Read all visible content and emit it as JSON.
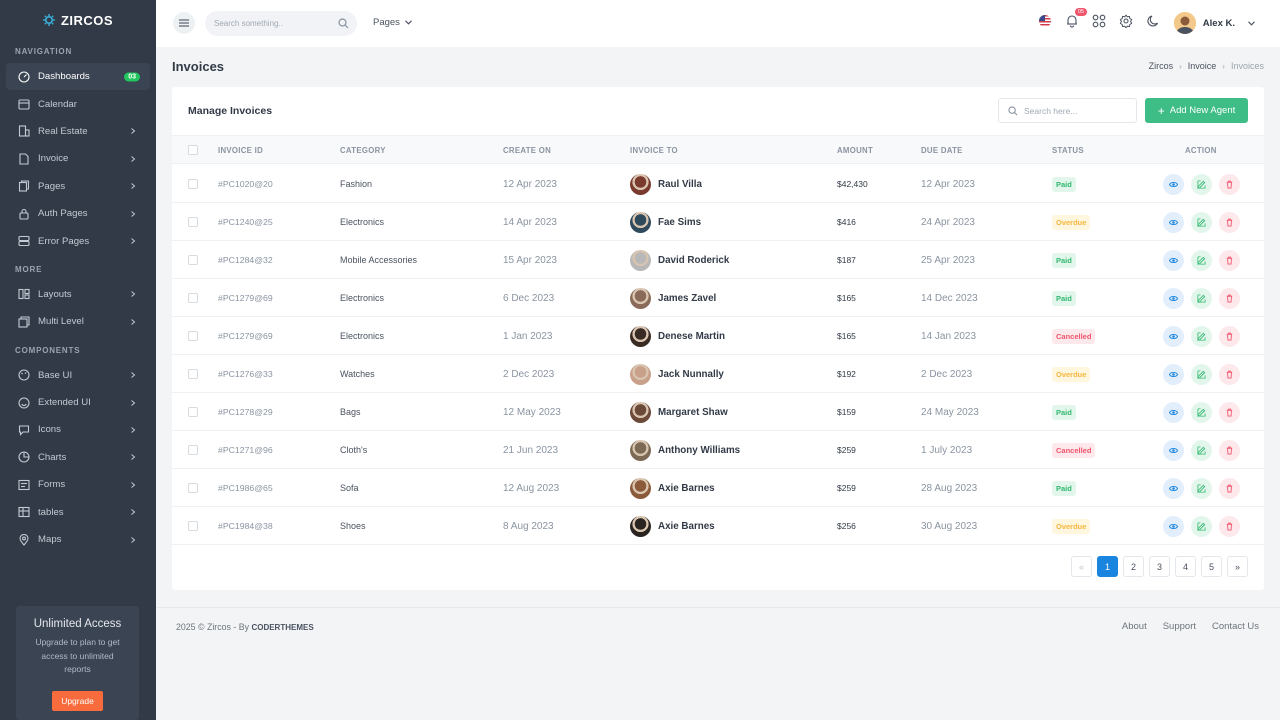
{
  "brand": "ZIRCOS",
  "sidebar": {
    "sections": [
      {
        "title": "NAVIGATION",
        "items": [
          {
            "label": "Dashboards",
            "icon": "dashboard-icon",
            "badge": "03",
            "active": true
          },
          {
            "label": "Calendar",
            "icon": "calendar-icon"
          },
          {
            "label": "Real Estate",
            "icon": "building-icon",
            "chevron": true
          },
          {
            "label": "Invoice",
            "icon": "file-icon",
            "chevron": true
          },
          {
            "label": "Pages",
            "icon": "pages-icon",
            "chevron": true
          },
          {
            "label": "Auth Pages",
            "icon": "lock-icon",
            "chevron": true
          },
          {
            "label": "Error Pages",
            "icon": "server-icon",
            "chevron": true
          }
        ]
      },
      {
        "title": "MORE",
        "items": [
          {
            "label": "Layouts",
            "icon": "layout-icon",
            "chevron": true
          },
          {
            "label": "Multi Level",
            "icon": "layers-icon",
            "chevron": true
          }
        ]
      },
      {
        "title": "COMPONENTS",
        "items": [
          {
            "label": "Base UI",
            "icon": "palette-icon",
            "chevron": true
          },
          {
            "label": "Extended UI",
            "icon": "smile-icon",
            "chevron": true
          },
          {
            "label": "Icons",
            "icon": "message-icon",
            "chevron": true
          },
          {
            "label": "Charts",
            "icon": "chart-icon",
            "chevron": true
          },
          {
            "label": "Forms",
            "icon": "form-icon",
            "chevron": true
          },
          {
            "label": "tables",
            "icon": "table-icon",
            "chevron": true
          },
          {
            "label": "Maps",
            "icon": "map-pin-icon",
            "chevron": true
          }
        ]
      }
    ],
    "promo": {
      "title": "Unlimited Access",
      "text": "Upgrade to plan to  get access to unlimited reports",
      "button": "Upgrade"
    }
  },
  "topbar": {
    "search_placeholder": "Search something..",
    "pages_menu": "Pages",
    "notification_count": "05",
    "user_name": "Alex K."
  },
  "page": {
    "title": "Invoices",
    "breadcrumb": [
      "Zircos",
      "Invoice",
      "Invoices"
    ]
  },
  "card": {
    "title": "Manage Invoices",
    "search_placeholder": "Search here...",
    "add_button": "Add New Agent",
    "columns": [
      "INVOICE ID",
      "CATEGORY",
      "CREATE ON",
      "INVOICE TO",
      "AMOUNT",
      "DUE DATE",
      "STATUS",
      "ACTION"
    ],
    "rows": [
      {
        "id": "#PC1020@20",
        "category": "Fashion",
        "created": "12 Apr 2023",
        "to": "Raul Villa",
        "amount": "$42,430",
        "due": "12 Apr 2023",
        "status": "Paid",
        "avatar_color": "#7a3b2e"
      },
      {
        "id": "#PC1240@25",
        "category": "Electronics",
        "created": "14 Apr 2023",
        "to": "Fae Sims",
        "amount": "$416",
        "due": "24 Apr 2023",
        "status": "Overdue",
        "avatar_color": "#2e4a5c"
      },
      {
        "id": "#PC1284@32",
        "category": "Mobile Accessories",
        "created": "15 Apr 2023",
        "to": "David Roderick",
        "amount": "$187",
        "due": "25 Apr 2023",
        "status": "Paid",
        "avatar_color": "#b8b8b8"
      },
      {
        "id": "#PC1279@69",
        "category": "Electronics",
        "created": "6 Dec 2023",
        "to": "James Zavel",
        "amount": "$165",
        "due": "14 Dec 2023",
        "status": "Paid",
        "avatar_color": "#8a6b5a"
      },
      {
        "id": "#PC1279@69",
        "category": "Electronics",
        "created": "1 Jan 2023",
        "to": "Denese Martin",
        "amount": "$165",
        "due": "14 Jan 2023",
        "status": "Cancelled",
        "avatar_color": "#3a2a24"
      },
      {
        "id": "#PC1276@33",
        "category": "Watches",
        "created": "2 Dec 2023",
        "to": "Jack Nunnally",
        "amount": "$192",
        "due": "2 Dec 2023",
        "status": "Overdue",
        "avatar_color": "#c9a08a"
      },
      {
        "id": "#PC1278@29",
        "category": "Bags",
        "created": "12 May 2023",
        "to": "Margaret Shaw",
        "amount": "$159",
        "due": "24 May 2023",
        "status": "Paid",
        "avatar_color": "#6b4a3a"
      },
      {
        "id": "#PC1271@96",
        "category": "Cloth's",
        "created": "21 Jun 2023",
        "to": "Anthony Williams",
        "amount": "$259",
        "due": "1 July 2023",
        "status": "Cancelled",
        "avatar_color": "#7c6a55"
      },
      {
        "id": "#PC1986@65",
        "category": "Sofa",
        "created": "12 Aug 2023",
        "to": "Axie Barnes",
        "amount": "$259",
        "due": "28 Aug 2023",
        "status": "Paid",
        "avatar_color": "#8a5a3a"
      },
      {
        "id": "#PC1984@38",
        "category": "Shoes",
        "created": "8 Aug 2023",
        "to": "Axie Barnes",
        "amount": "$256",
        "due": "30 Aug 2023",
        "status": "Overdue",
        "avatar_color": "#2a2420"
      }
    ],
    "pagination": [
      "«",
      "1",
      "2",
      "3",
      "4",
      "5",
      "»"
    ],
    "active_page": "1"
  },
  "footer": {
    "copyright": "2025 © Zircos - By",
    "company": "CODERTHEMES",
    "links": [
      "About",
      "Support",
      "Contact Us"
    ]
  },
  "colors": {
    "sidebar_bg": "#313a46",
    "accent_green": "#3ebd86",
    "accent_blue": "#1a85df",
    "danger": "#f1556c",
    "warning": "#f4b73c"
  }
}
